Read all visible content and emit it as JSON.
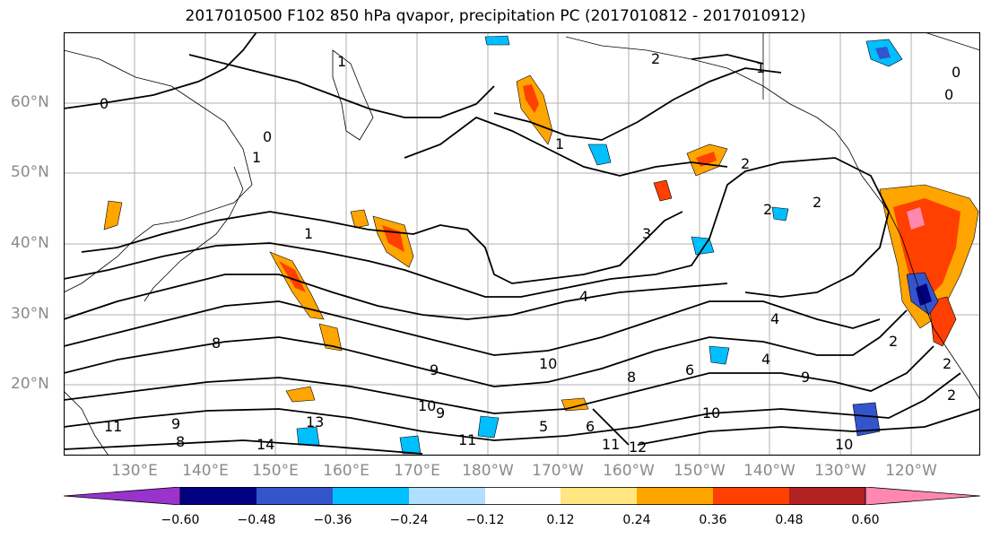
{
  "title": "2017010500 F102 850 hPa qvapor, precipitation PC (2017010812 - 2017010912)",
  "lat_labels": [
    "60°N",
    "50°N",
    "40°N",
    "30°N",
    "20°N"
  ],
  "lon_labels": [
    "130°E",
    "140°E",
    "150°E",
    "160°E",
    "170°E",
    "180°W",
    "170°W",
    "160°W",
    "150°W",
    "140°W",
    "130°W",
    "120°W"
  ],
  "colorbar": {
    "ticks": [
      "−0.60",
      "−0.48",
      "−0.36",
      "−0.24",
      "−0.12",
      "0.12",
      "0.24",
      "0.36",
      "0.48",
      "0.60"
    ],
    "colors": [
      "#9933cc",
      "#000080",
      "#3355cc",
      "#00bfff",
      "#b0e0ff",
      "#ffffff",
      "#ffe680",
      "#ffa500",
      "#ff4000",
      "#b22222",
      "#ff88b0"
    ]
  },
  "contour_labels": [
    "0",
    "2",
    "1",
    "0",
    "0",
    "1",
    "0",
    "1",
    "2",
    "1",
    "2",
    "2",
    "2",
    "3",
    "1",
    "4",
    "4",
    "4",
    "6",
    "8",
    "8",
    "9",
    "10",
    "10",
    "9",
    "6",
    "11",
    "12",
    "13",
    "14",
    "9",
    "11",
    "8",
    "10",
    "5",
    "9",
    "2",
    "2",
    "10",
    "11"
  ],
  "map_colors": {
    "land": "#000000",
    "grid": "#b0b0b0",
    "contour": "#000000",
    "pos_low": "#ffa500",
    "pos_mid": "#ff4000",
    "pos_high": "#ff88b0",
    "neg_low": "#00bfff",
    "neg_mid": "#3355cc",
    "neg_high": "#000080"
  }
}
